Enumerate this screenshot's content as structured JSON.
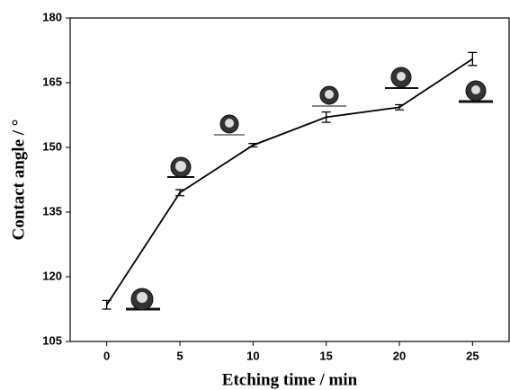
{
  "chart_data": {
    "type": "line",
    "x_label": "Etching time / min",
    "y_label": "Contact angle / °",
    "x": [
      0,
      5,
      10,
      15,
      20,
      25
    ],
    "values": [
      113.5,
      139.5,
      150.5,
      157,
      159.3,
      170.5
    ],
    "errors": [
      1,
      0.7,
      0.4,
      1.2,
      0.6,
      1.5
    ],
    "color": "#000000",
    "xlim": [
      -2.5,
      27.5
    ],
    "xticks": [
      0,
      5,
      10,
      15,
      20,
      25
    ],
    "ylim": [
      105,
      180
    ],
    "yticks": [
      105,
      120,
      135,
      150,
      165,
      180
    ]
  }
}
